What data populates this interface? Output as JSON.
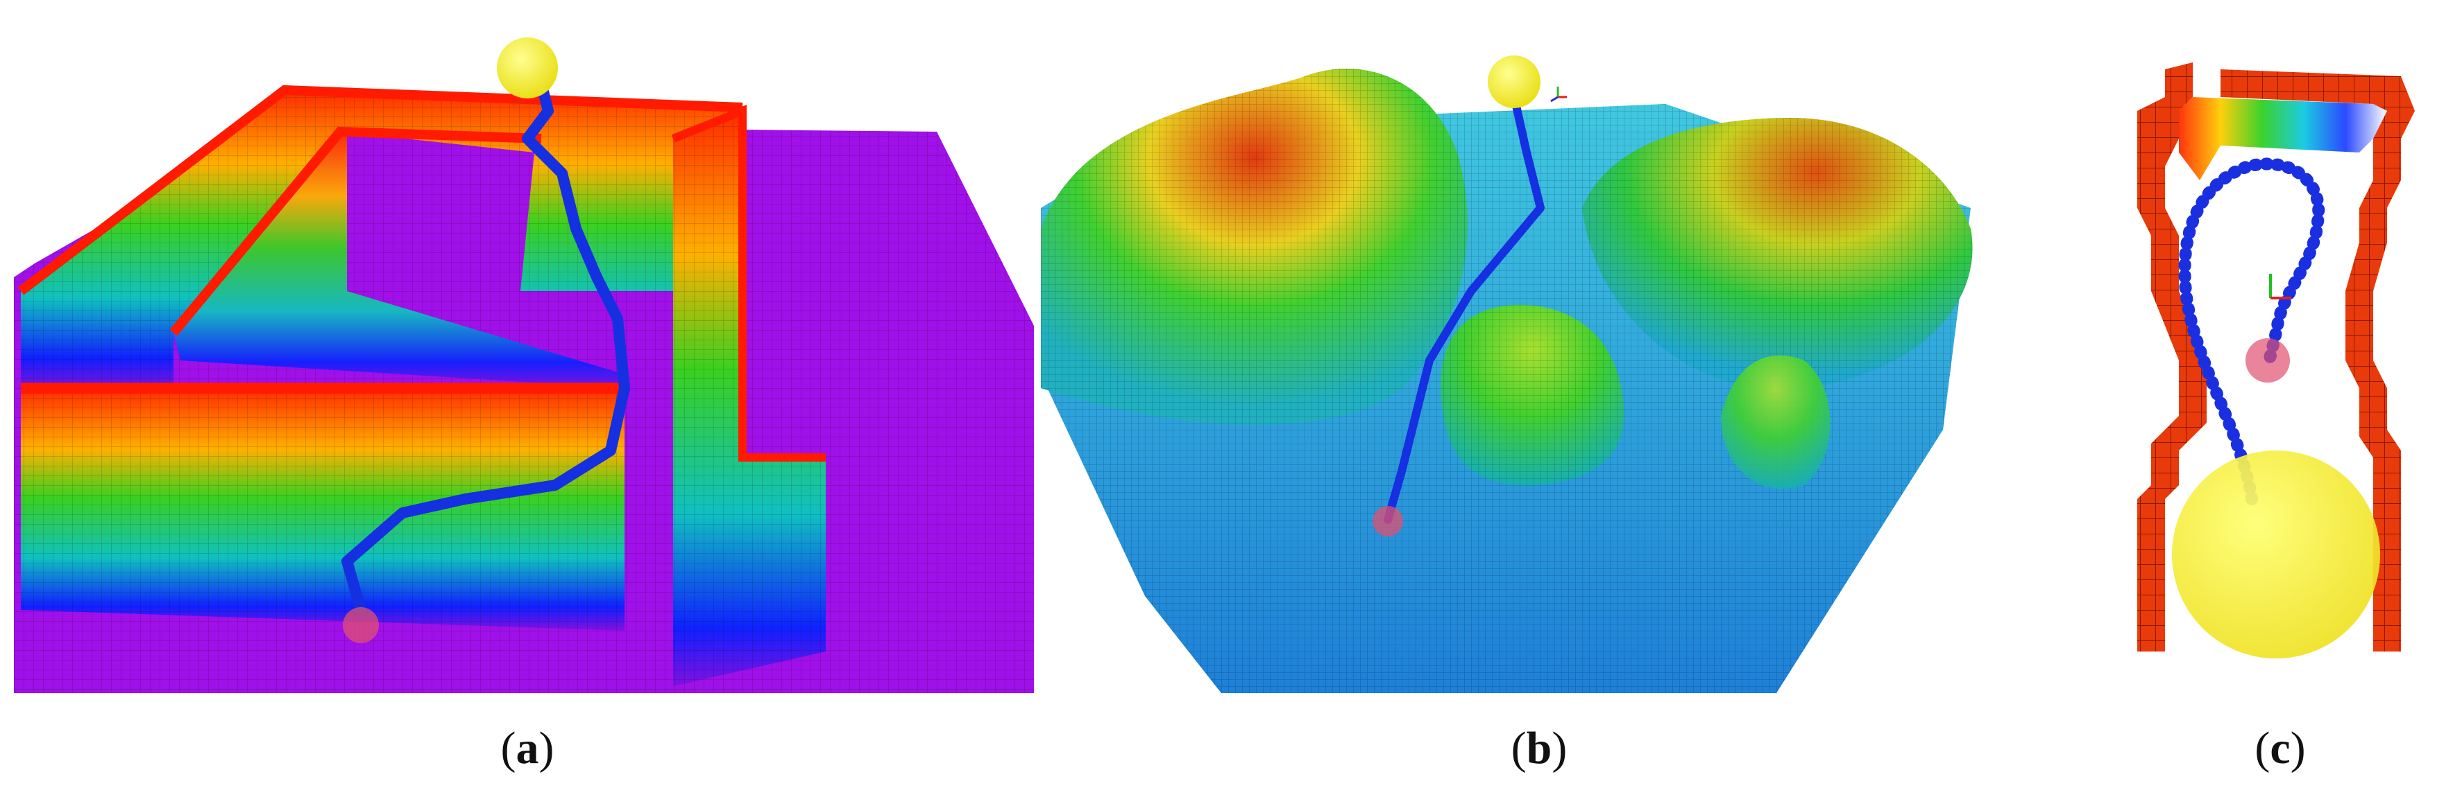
{
  "figure": {
    "panels": [
      {
        "id": "a",
        "label_open": "(",
        "label_letter": "a",
        "label_close": ")"
      },
      {
        "id": "b",
        "label_open": "(",
        "label_letter": "b",
        "label_close": ")"
      },
      {
        "id": "c",
        "label_open": "(",
        "label_letter": "c",
        "label_close": ")"
      }
    ]
  },
  "colors": {
    "ground": "#a010e8",
    "wall_top": "#ff2a00",
    "wall_mid": "#10d020",
    "wall_bottom": "#1020ff",
    "path": "#1530e0",
    "goal": "#f5f22a",
    "start": "#e05070",
    "terrain_low": "#1ea0e0",
    "terrain_high": "#e04010",
    "voxel_edge": "#e83a0a"
  }
}
